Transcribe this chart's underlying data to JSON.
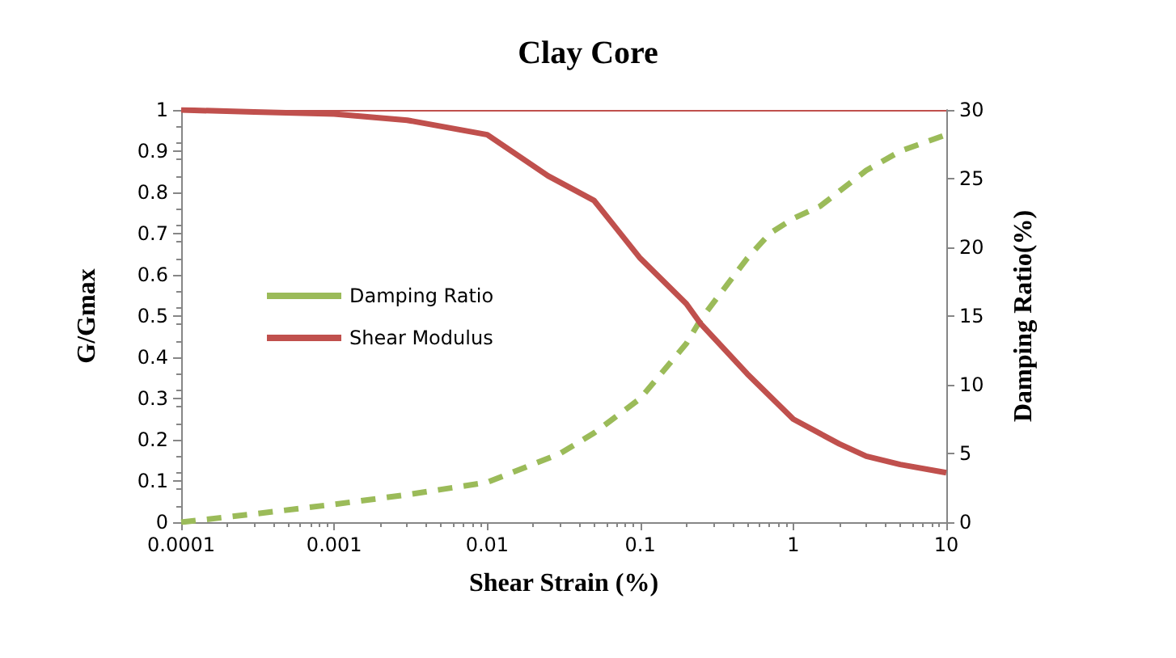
{
  "chart_data": {
    "type": "line",
    "title": "Clay Core",
    "xlabel": "Shear Strain (%)",
    "ylabel": "G/Gmax",
    "y2label": "Damping Ratio(%)",
    "log": "x",
    "grid": false,
    "legend": "left",
    "marker": "none",
    "xlim": [
      0.0001,
      10
    ],
    "xticks": [
      0.0001,
      0.001,
      0.01,
      0.1,
      1,
      10
    ],
    "ylim": [
      0,
      1
    ],
    "yticks": [
      0,
      0.1,
      0.2,
      0.3,
      0.4,
      0.5,
      0.6,
      0.7,
      0.8,
      0.9,
      1
    ],
    "y2lim": [
      0,
      30
    ],
    "y2ticks": [
      0,
      5,
      10,
      15,
      20,
      25,
      30
    ],
    "ref_lines": [
      {
        "axis": "y",
        "value": 1,
        "color": "#c0504d"
      }
    ],
    "series": [
      {
        "name": "Damping Ratio",
        "color": "#9bbb59",
        "axis": "y2",
        "line_style": "dashed",
        "x": [
          0.0001,
          0.0003,
          0.001,
          0.003,
          0.01,
          0.03,
          0.05,
          0.1,
          0.2,
          0.25,
          0.5,
          0.7,
          1,
          1.5,
          3,
          5,
          10
        ],
        "values": [
          0,
          0.6,
          1.3,
          2,
          2.9,
          5,
          6.5,
          9,
          13,
          14.8,
          19.2,
          21,
          22.1,
          23,
          25.6,
          27,
          28.2
        ]
      },
      {
        "name": "Shear Modulus",
        "color": "#c0504d",
        "line_style": "solid",
        "x": [
          0.0001,
          0.0003,
          0.001,
          0.003,
          0.01,
          0.025,
          0.05,
          0.1,
          0.2,
          0.25,
          0.5,
          1,
          2,
          3,
          5,
          10
        ],
        "values": [
          1,
          0.995,
          0.99,
          0.975,
          0.94,
          0.84,
          0.78,
          0.64,
          0.53,
          0.48,
          0.36,
          0.25,
          0.19,
          0.16,
          0.14,
          0.12
        ]
      }
    ]
  }
}
